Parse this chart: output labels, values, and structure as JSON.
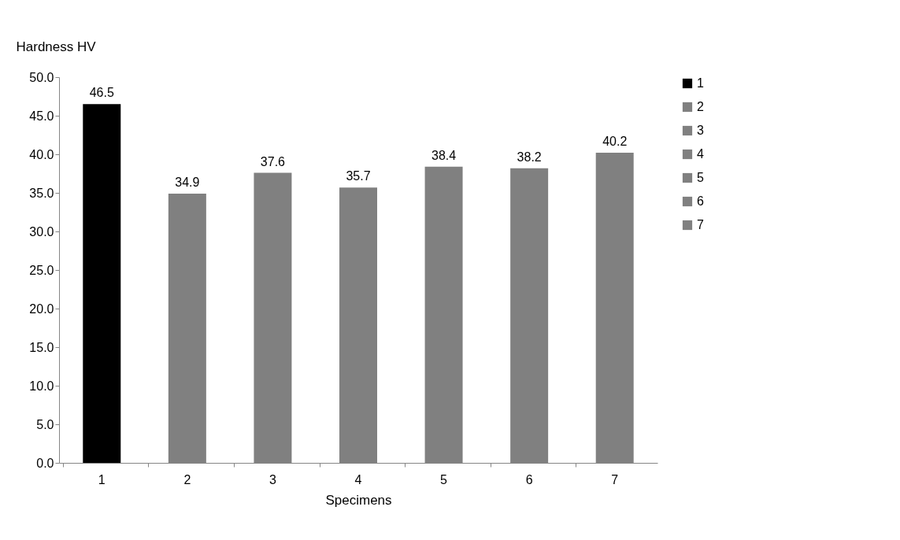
{
  "chart_data": {
    "type": "bar",
    "xlabel": "Specimens",
    "ylabel": "Hardness HV",
    "categories": [
      "1",
      "2",
      "3",
      "4",
      "5",
      "6",
      "7"
    ],
    "series": [
      {
        "name": "1",
        "color": "#000000",
        "values": [
          46.5,
          null,
          null,
          null,
          null,
          null,
          null
        ]
      },
      {
        "name": "2",
        "color": "#808080",
        "values": [
          null,
          34.9,
          null,
          null,
          null,
          null,
          null
        ]
      },
      {
        "name": "3",
        "color": "#808080",
        "values": [
          null,
          null,
          37.6,
          null,
          null,
          null,
          null
        ]
      },
      {
        "name": "4",
        "color": "#808080",
        "values": [
          null,
          null,
          null,
          35.7,
          null,
          null,
          null
        ]
      },
      {
        "name": "5",
        "color": "#808080",
        "values": [
          null,
          null,
          null,
          null,
          38.4,
          null,
          null
        ]
      },
      {
        "name": "6",
        "color": "#808080",
        "values": [
          null,
          null,
          null,
          null,
          null,
          38.2,
          null
        ]
      },
      {
        "name": "7",
        "color": "#808080",
        "values": [
          null,
          null,
          null,
          null,
          null,
          null,
          40.2
        ]
      }
    ],
    "ylim": [
      0,
      50
    ],
    "yticks": [
      {
        "value": 0,
        "label": "0.0"
      },
      {
        "value": 5,
        "label": "5.0"
      },
      {
        "value": 10,
        "label": "10.0"
      },
      {
        "value": 15,
        "label": "15.0"
      },
      {
        "value": 20,
        "label": "20.0"
      },
      {
        "value": 25,
        "label": "25.0"
      },
      {
        "value": 30,
        "label": "30.0"
      },
      {
        "value": 35,
        "label": "35.0"
      },
      {
        "value": 40,
        "label": "40.0"
      },
      {
        "value": 45,
        "label": "45.0"
      },
      {
        "value": 50,
        "label": "50.0"
      }
    ],
    "data_labels": true,
    "grid": false,
    "legend": "right"
  }
}
